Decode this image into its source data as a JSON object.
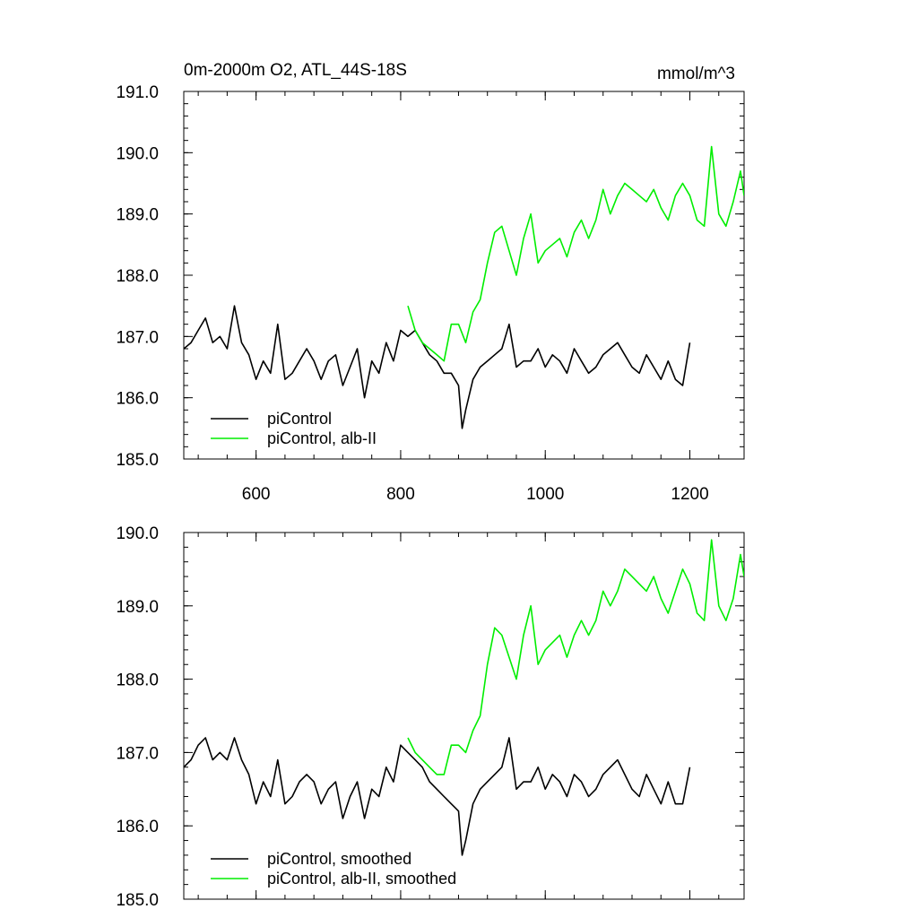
{
  "chart_data": [
    {
      "type": "line",
      "title_left": "0m-2000m O2, ATL_44S-18S",
      "title_right": "mmol/m^3",
      "xlim": [
        500,
        1275
      ],
      "ylim": [
        185.0,
        191.0
      ],
      "x_ticks": [
        600,
        800,
        1000,
        1200
      ],
      "x_tick_labels": [
        "600",
        "800",
        "1000",
        "1200"
      ],
      "y_ticks": [
        185.0,
        186.0,
        187.0,
        188.0,
        189.0,
        190.0,
        191.0
      ],
      "y_tick_labels": [
        "185.0",
        "186.0",
        "187.0",
        "188.0",
        "189.0",
        "190.0",
        "191.0"
      ],
      "legend_position": "bottom-left",
      "series": [
        {
          "name": "piControl",
          "color": "#000000",
          "x": [
            500,
            510,
            520,
            530,
            540,
            550,
            560,
            570,
            580,
            590,
            600,
            610,
            620,
            630,
            640,
            650,
            660,
            670,
            680,
            690,
            700,
            710,
            720,
            730,
            740,
            750,
            760,
            770,
            780,
            790,
            800,
            810,
            820,
            830,
            840,
            850,
            860,
            870,
            880,
            885,
            890,
            900,
            910,
            920,
            930,
            940,
            950,
            960,
            970,
            980,
            990,
            1000,
            1010,
            1020,
            1030,
            1040,
            1050,
            1060,
            1070,
            1080,
            1090,
            1100,
            1110,
            1120,
            1130,
            1140,
            1150,
            1160,
            1170,
            1180,
            1190,
            1200
          ],
          "values": [
            186.8,
            186.9,
            187.1,
            187.3,
            186.9,
            187.0,
            186.8,
            187.5,
            186.9,
            186.7,
            186.3,
            186.6,
            186.4,
            187.2,
            186.3,
            186.4,
            186.6,
            186.8,
            186.6,
            186.3,
            186.6,
            186.7,
            186.2,
            186.5,
            186.8,
            186.0,
            186.6,
            186.4,
            186.9,
            186.6,
            187.1,
            187.0,
            187.1,
            186.9,
            186.7,
            186.6,
            186.4,
            186.4,
            186.2,
            185.5,
            185.8,
            186.3,
            186.5,
            186.6,
            186.7,
            186.8,
            187.2,
            186.5,
            186.6,
            186.6,
            186.8,
            186.5,
            186.7,
            186.6,
            186.4,
            186.8,
            186.6,
            186.4,
            186.5,
            186.7,
            186.8,
            186.9,
            186.7,
            186.5,
            186.4,
            186.7,
            186.5,
            186.3,
            186.6,
            186.3,
            186.2,
            186.9
          ]
        },
        {
          "name": "piControl, alb-II",
          "color": "#00ee00",
          "x": [
            810,
            820,
            830,
            840,
            850,
            860,
            870,
            880,
            890,
            900,
            910,
            920,
            930,
            940,
            950,
            960,
            970,
            980,
            990,
            1000,
            1010,
            1020,
            1030,
            1040,
            1050,
            1060,
            1070,
            1080,
            1090,
            1100,
            1110,
            1120,
            1130,
            1140,
            1150,
            1160,
            1170,
            1180,
            1190,
            1200,
            1210,
            1220,
            1230,
            1240,
            1250,
            1260,
            1270,
            1275
          ],
          "values": [
            187.5,
            187.1,
            186.9,
            186.8,
            186.7,
            186.6,
            187.2,
            187.2,
            186.9,
            187.4,
            187.6,
            188.2,
            188.7,
            188.8,
            188.4,
            188.0,
            188.6,
            189.0,
            188.2,
            188.4,
            188.5,
            188.6,
            188.3,
            188.7,
            188.9,
            188.6,
            188.9,
            189.4,
            189.0,
            189.3,
            189.5,
            189.4,
            189.3,
            189.2,
            189.4,
            189.1,
            188.9,
            189.3,
            189.5,
            189.3,
            188.9,
            188.8,
            190.1,
            189.0,
            188.8,
            189.2,
            189.7,
            189.3
          ]
        }
      ]
    },
    {
      "type": "line",
      "xlim": [
        500,
        1275
      ],
      "ylim": [
        185.0,
        190.0
      ],
      "x_ticks": [
        600,
        800,
        1000,
        1200
      ],
      "y_ticks": [
        185.0,
        186.0,
        187.0,
        188.0,
        189.0,
        190.0
      ],
      "y_tick_labels": [
        "185.0",
        "186.0",
        "187.0",
        "188.0",
        "189.0",
        "190.0"
      ],
      "legend_position": "bottom-left",
      "series": [
        {
          "name": "piControl, smoothed",
          "color": "#000000",
          "x": [
            500,
            510,
            520,
            530,
            540,
            550,
            560,
            570,
            580,
            590,
            600,
            610,
            620,
            630,
            640,
            650,
            660,
            670,
            680,
            690,
            700,
            710,
            720,
            730,
            740,
            750,
            760,
            770,
            780,
            790,
            800,
            810,
            820,
            830,
            840,
            850,
            860,
            870,
            880,
            885,
            890,
            900,
            910,
            920,
            930,
            940,
            950,
            960,
            970,
            980,
            990,
            1000,
            1010,
            1020,
            1030,
            1040,
            1050,
            1060,
            1070,
            1080,
            1090,
            1100,
            1110,
            1120,
            1130,
            1140,
            1150,
            1160,
            1170,
            1180,
            1190,
            1200
          ],
          "values": [
            186.8,
            186.9,
            187.1,
            187.2,
            186.9,
            187.0,
            186.9,
            187.2,
            186.9,
            186.7,
            186.3,
            186.6,
            186.4,
            186.9,
            186.3,
            186.4,
            186.6,
            186.7,
            186.6,
            186.3,
            186.5,
            186.6,
            186.1,
            186.4,
            186.6,
            186.1,
            186.5,
            186.4,
            186.8,
            186.6,
            187.1,
            187.0,
            186.9,
            186.8,
            186.6,
            186.5,
            186.4,
            186.3,
            186.2,
            185.6,
            185.8,
            186.3,
            186.5,
            186.6,
            186.7,
            186.8,
            187.2,
            186.5,
            186.6,
            186.6,
            186.8,
            186.5,
            186.7,
            186.6,
            186.4,
            186.7,
            186.6,
            186.4,
            186.5,
            186.7,
            186.8,
            186.9,
            186.7,
            186.5,
            186.4,
            186.7,
            186.5,
            186.3,
            186.6,
            186.3,
            186.3,
            186.8
          ]
        },
        {
          "name": "piControl, alb-II, smoothed",
          "color": "#00ee00",
          "x": [
            810,
            820,
            830,
            840,
            850,
            860,
            870,
            880,
            890,
            900,
            910,
            920,
            930,
            940,
            950,
            960,
            970,
            980,
            990,
            1000,
            1010,
            1020,
            1030,
            1040,
            1050,
            1060,
            1070,
            1080,
            1090,
            1100,
            1110,
            1120,
            1130,
            1140,
            1150,
            1160,
            1170,
            1180,
            1190,
            1200,
            1210,
            1220,
            1230,
            1240,
            1250,
            1260,
            1270,
            1275
          ],
          "values": [
            187.2,
            187.0,
            186.9,
            186.8,
            186.7,
            186.7,
            187.1,
            187.1,
            187.0,
            187.3,
            187.5,
            188.2,
            188.7,
            188.6,
            188.3,
            188.0,
            188.6,
            189.0,
            188.2,
            188.4,
            188.5,
            188.6,
            188.3,
            188.6,
            188.8,
            188.6,
            188.8,
            189.2,
            189.0,
            189.2,
            189.5,
            189.4,
            189.3,
            189.2,
            189.4,
            189.1,
            188.9,
            189.2,
            189.5,
            189.3,
            188.9,
            188.8,
            189.9,
            189.0,
            188.8,
            189.1,
            189.7,
            189.4
          ]
        }
      ]
    }
  ]
}
